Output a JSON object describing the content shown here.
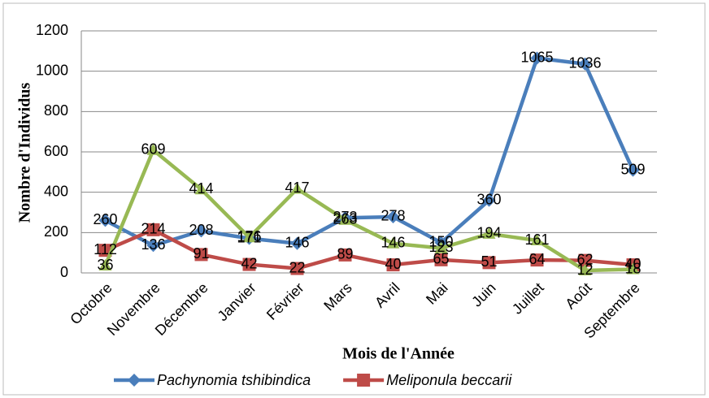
{
  "chart_data": {
    "type": "line",
    "y_label": "Nombre d'Individus",
    "x_label": "Mois de l'Année",
    "categories": [
      "Octobre",
      "Novembre",
      "Décembre",
      "Janvier",
      "Février",
      "Mars",
      "Avril",
      "Mai",
      "Juin",
      "Juillet",
      "Août",
      "Septembre"
    ],
    "series": [
      {
        "name": "Pachynomia tshibindica",
        "color": "#4a7ebb",
        "marker": "diamond",
        "values": [
          260,
          136,
          208,
          171,
          146,
          273,
          278,
          150,
          360,
          1065,
          1036,
          509
        ]
      },
      {
        "name": "Meliponula beccarii",
        "color": "#be4b48",
        "marker": "square",
        "values": [
          112,
          214,
          91,
          42,
          22,
          89,
          40,
          65,
          51,
          64,
          62,
          40
        ]
      },
      {
        "color": "#98b954",
        "marker": "triangle",
        "values": [
          36,
          609,
          414,
          176,
          417,
          263,
          146,
          123,
          194,
          161,
          12,
          18
        ]
      }
    ],
    "ylim": [
      0,
      1200
    ],
    "yticks": [
      0,
      200,
      400,
      600,
      800,
      1000,
      1200
    ],
    "grid": true
  }
}
